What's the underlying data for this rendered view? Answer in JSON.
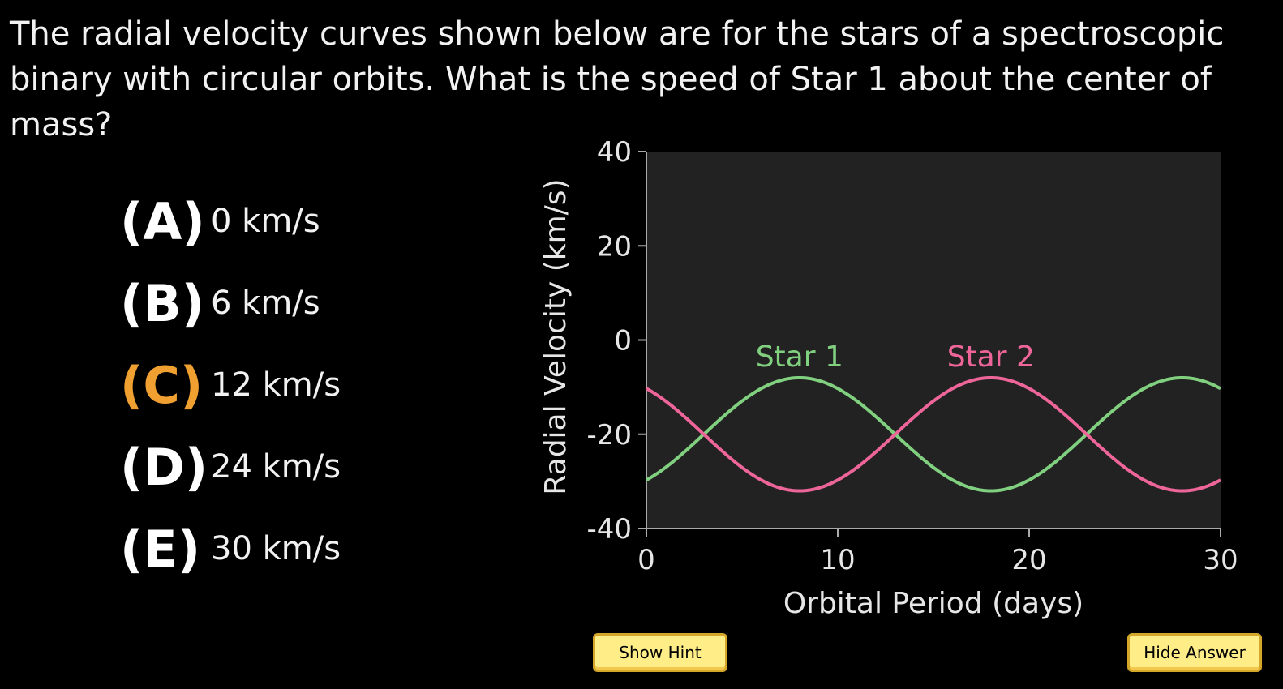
{
  "question": "The radial velocity curves shown below are for the stars of a spectroscopic binary with circular orbits. What is the speed of Star 1 about the center of mass?",
  "choices": [
    {
      "letter": "(A)",
      "text": "0 km/s",
      "highlighted": false
    },
    {
      "letter": "(B)",
      "text": "6 km/s",
      "highlighted": false
    },
    {
      "letter": "(C)",
      "text": "12 km/s",
      "highlighted": true
    },
    {
      "letter": "(D)",
      "text": "24 km/s",
      "highlighted": false
    },
    {
      "letter": "(E)",
      "text": "30 km/s",
      "highlighted": false
    }
  ],
  "colors": {
    "highlight": "#f0a030",
    "star1": "#80d080",
    "star2": "#ee6699",
    "plot_bg": "#222222",
    "axis": "#aaaaaa"
  },
  "buttons": {
    "hint": "Show Hint",
    "answer": "Hide Answer"
  },
  "chart_data": {
    "type": "line",
    "xlabel": "Orbital Period (days)",
    "ylabel": "Radial Velocity (km/s)",
    "xlim": [
      0,
      30
    ],
    "ylim": [
      -40,
      40
    ],
    "xticks": [
      0,
      10,
      20,
      30
    ],
    "yticks": [
      -40,
      -20,
      0,
      20,
      40
    ],
    "grid": false,
    "series": [
      {
        "name": "Star 1",
        "systemic_velocity": -20,
        "amplitude": 12,
        "period": 20,
        "phase_peak_day": 8
      },
      {
        "name": "Star 2",
        "systemic_velocity": -20,
        "amplitude": 12,
        "period": 20,
        "phase_peak_day": 18
      }
    ]
  }
}
